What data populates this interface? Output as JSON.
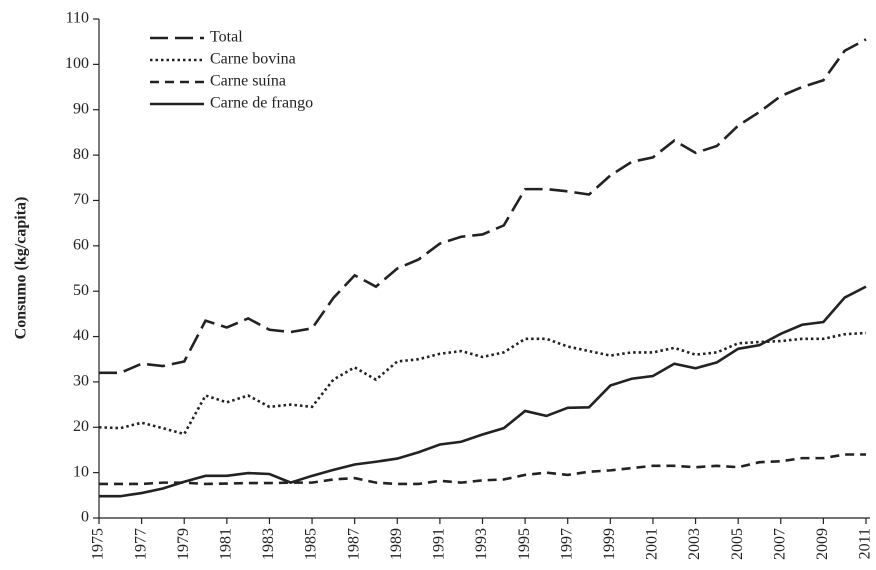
{
  "chart_data": {
    "type": "line",
    "y_label": "Consumo (kg/capita)",
    "x": [
      1975,
      1976,
      1977,
      1978,
      1979,
      1980,
      1981,
      1982,
      1983,
      1984,
      1985,
      1986,
      1987,
      1988,
      1989,
      1990,
      1991,
      1992,
      1993,
      1994,
      1995,
      1996,
      1997,
      1998,
      1999,
      2000,
      2001,
      2002,
      2003,
      2004,
      2005,
      2006,
      2007,
      2008,
      2009,
      2010,
      2011
    ],
    "xlim": [
      1975,
      2011
    ],
    "xticks": [
      1975,
      1977,
      1979,
      1981,
      1983,
      1985,
      1987,
      1989,
      1991,
      1993,
      1995,
      1997,
      1999,
      2001,
      2003,
      2005,
      2007,
      2009,
      2011
    ],
    "ylim": [
      0,
      110
    ],
    "yticks": [
      0,
      10,
      20,
      30,
      40,
      50,
      60,
      70,
      80,
      90,
      100,
      110
    ],
    "legend": "upper-left",
    "series": [
      {
        "name": "Total",
        "color": "#222222",
        "dash": "long-dash",
        "values": [
          32,
          32,
          34,
          33.5,
          34.5,
          43.5,
          42,
          44,
          41.5,
          41,
          41.8,
          48.5,
          53.5,
          51,
          55,
          57,
          60.5,
          62,
          62.5,
          64.5,
          72.5,
          72.5,
          72,
          71.3,
          75.5,
          78.5,
          79.5,
          83.2,
          80.5,
          82,
          86.5,
          89.5,
          93,
          95,
          96.5,
          103,
          105.5
        ]
      },
      {
        "name": "Carne bovina",
        "color": "#222222",
        "dash": "dotted",
        "values": [
          20,
          19.8,
          21,
          19.8,
          18.5,
          27,
          25.5,
          27,
          24.5,
          25,
          24.5,
          30.5,
          33.2,
          30.5,
          34.5,
          35,
          36.2,
          36.8,
          35.5,
          36.5,
          39.5,
          39.5,
          37.8,
          36.8,
          35.8,
          36.5,
          36.5,
          37.5,
          36,
          36.5,
          38.5,
          38.8,
          39,
          39.5,
          39.5,
          40.5,
          40.8
        ]
      },
      {
        "name": "Carne suína",
        "color": "#222222",
        "dash": "dashed",
        "values": [
          7.5,
          7.5,
          7.5,
          7.8,
          7.8,
          7.5,
          7.6,
          7.7,
          7.7,
          7.8,
          7.8,
          8.5,
          8.8,
          7.8,
          7.5,
          7.5,
          8.2,
          7.8,
          8.3,
          8.5,
          9.5,
          10,
          9.5,
          10.2,
          10.5,
          11,
          11.5,
          11.5,
          11.2,
          11.5,
          11.2,
          12.3,
          12.5,
          13.2,
          13.2,
          14,
          14
        ]
      },
      {
        "name": "Carne de frango",
        "color": "#222222",
        "dash": "solid",
        "values": [
          4.8,
          4.8,
          5.5,
          6.5,
          8,
          9.3,
          9.3,
          9.9,
          9.7,
          7.8,
          9.3,
          10.6,
          11.8,
          12.4,
          13.1,
          14.5,
          16.2,
          16.8,
          18.4,
          19.8,
          23.6,
          22.5,
          24.3,
          24.4,
          29.2,
          30.7,
          31.3,
          34,
          33,
          34.3,
          37.3,
          38.1,
          40.6,
          42.6,
          43.2,
          48.6,
          51
        ]
      }
    ]
  }
}
